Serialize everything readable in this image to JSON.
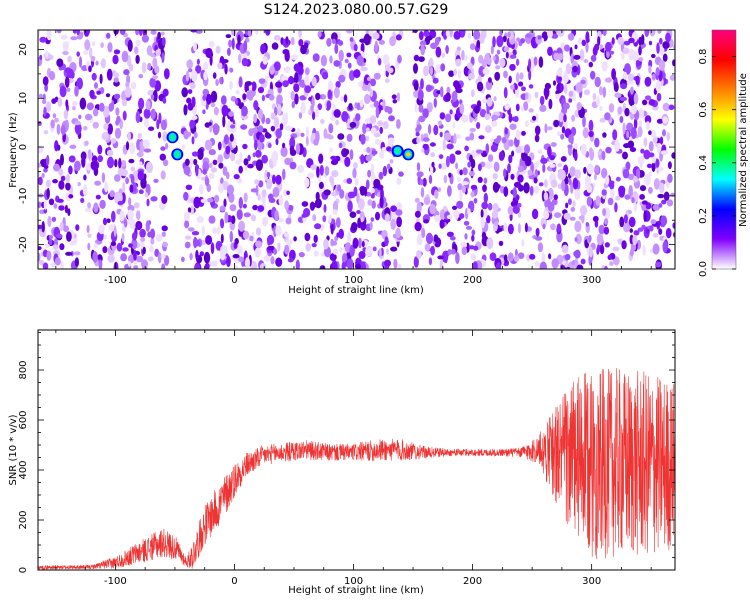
{
  "figure": {
    "title": "S124.2023.080.00.57.G29"
  },
  "chart_data": [
    {
      "type": "heatmap",
      "title": "S124.2023.080.00.57.G29",
      "xlabel": "Height of straight line (km)",
      "ylabel": "Frequency (Hz)",
      "xlim": [
        -165,
        370
      ],
      "ylim": [
        -25,
        24
      ],
      "xticks": [
        -100,
        0,
        100,
        200,
        300
      ],
      "yticks": [
        -20,
        -10,
        0,
        10,
        20
      ],
      "colorbar": {
        "label": "Normalized spectral amplitude",
        "range": [
          0,
          0.9
        ],
        "ticks": [
          0.0,
          0.2,
          0.4,
          0.6,
          0.8
        ],
        "colormap": [
          "#ffffff",
          "#8000ff",
          "#0000ff",
          "#00ffff",
          "#00ff00",
          "#ffff00",
          "#ff8000",
          "#ff0000",
          "#ff0080"
        ]
      },
      "gaps_x": [
        [
          -55,
          -45
        ],
        [
          142,
          150
        ]
      ],
      "peaks": [
        {
          "x": -52,
          "y": 2,
          "amplitude": 0.35
        },
        {
          "x": -48,
          "y": -1.5,
          "amplitude": 0.35
        },
        {
          "x": 137,
          "y": -0.8,
          "amplitude": 0.3
        },
        {
          "x": 146,
          "y": -1.5,
          "amplitude": 0.55
        }
      ],
      "grid": false
    },
    {
      "type": "line",
      "xlabel": "Height of straight line (km)",
      "ylabel": "SNR (10 * v/v)",
      "xlim": [
        -165,
        370
      ],
      "ylim": [
        0,
        960
      ],
      "xticks": [
        -100,
        0,
        100,
        200,
        300
      ],
      "yticks": [
        0,
        200,
        400,
        600,
        800
      ],
      "color": "#ee3333",
      "envelope": {
        "x": [
          -165,
          -120,
          -100,
          -80,
          -60,
          -50,
          -40,
          -35,
          -25,
          -10,
          0,
          10,
          25,
          40,
          60,
          80,
          100,
          120,
          140,
          160,
          180,
          200,
          220,
          240,
          255,
          265,
          275,
          285,
          300,
          320,
          340,
          360,
          370
        ],
        "mean": [
          10,
          12,
          30,
          70,
          110,
          90,
          30,
          60,
          180,
          280,
          360,
          420,
          460,
          470,
          480,
          470,
          470,
          480,
          480,
          470,
          470,
          470,
          470,
          470,
          480,
          470,
          460,
          440,
          420,
          430,
          420,
          420,
          420
        ],
        "noise": [
          8,
          8,
          25,
          45,
          60,
          50,
          20,
          60,
          80,
          90,
          70,
          50,
          40,
          40,
          40,
          35,
          35,
          45,
          45,
          25,
          15,
          15,
          15,
          20,
          60,
          150,
          250,
          330,
          380,
          380,
          380,
          360,
          340
        ]
      },
      "grid": false
    }
  ]
}
